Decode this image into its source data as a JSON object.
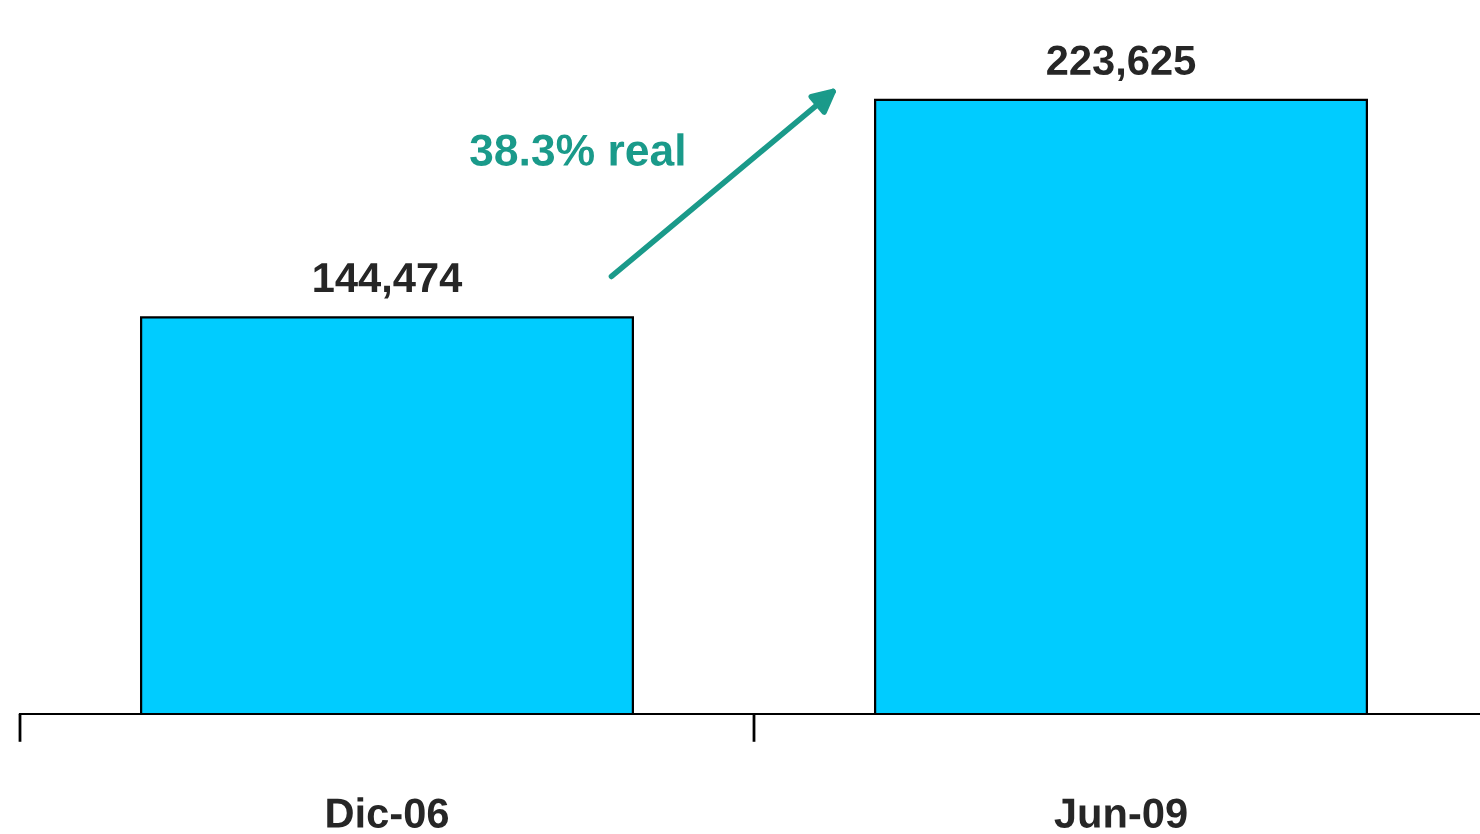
{
  "chart_data": {
    "type": "bar",
    "categories": [
      "Dic-06",
      "Jun-09"
    ],
    "values": [
      144474,
      223625
    ],
    "color": "#00ccff",
    "value_labels": [
      "144,474",
      "223,625"
    ],
    "annotations": [
      "38.3% real"
    ],
    "grid": false,
    "legend": false
  }
}
